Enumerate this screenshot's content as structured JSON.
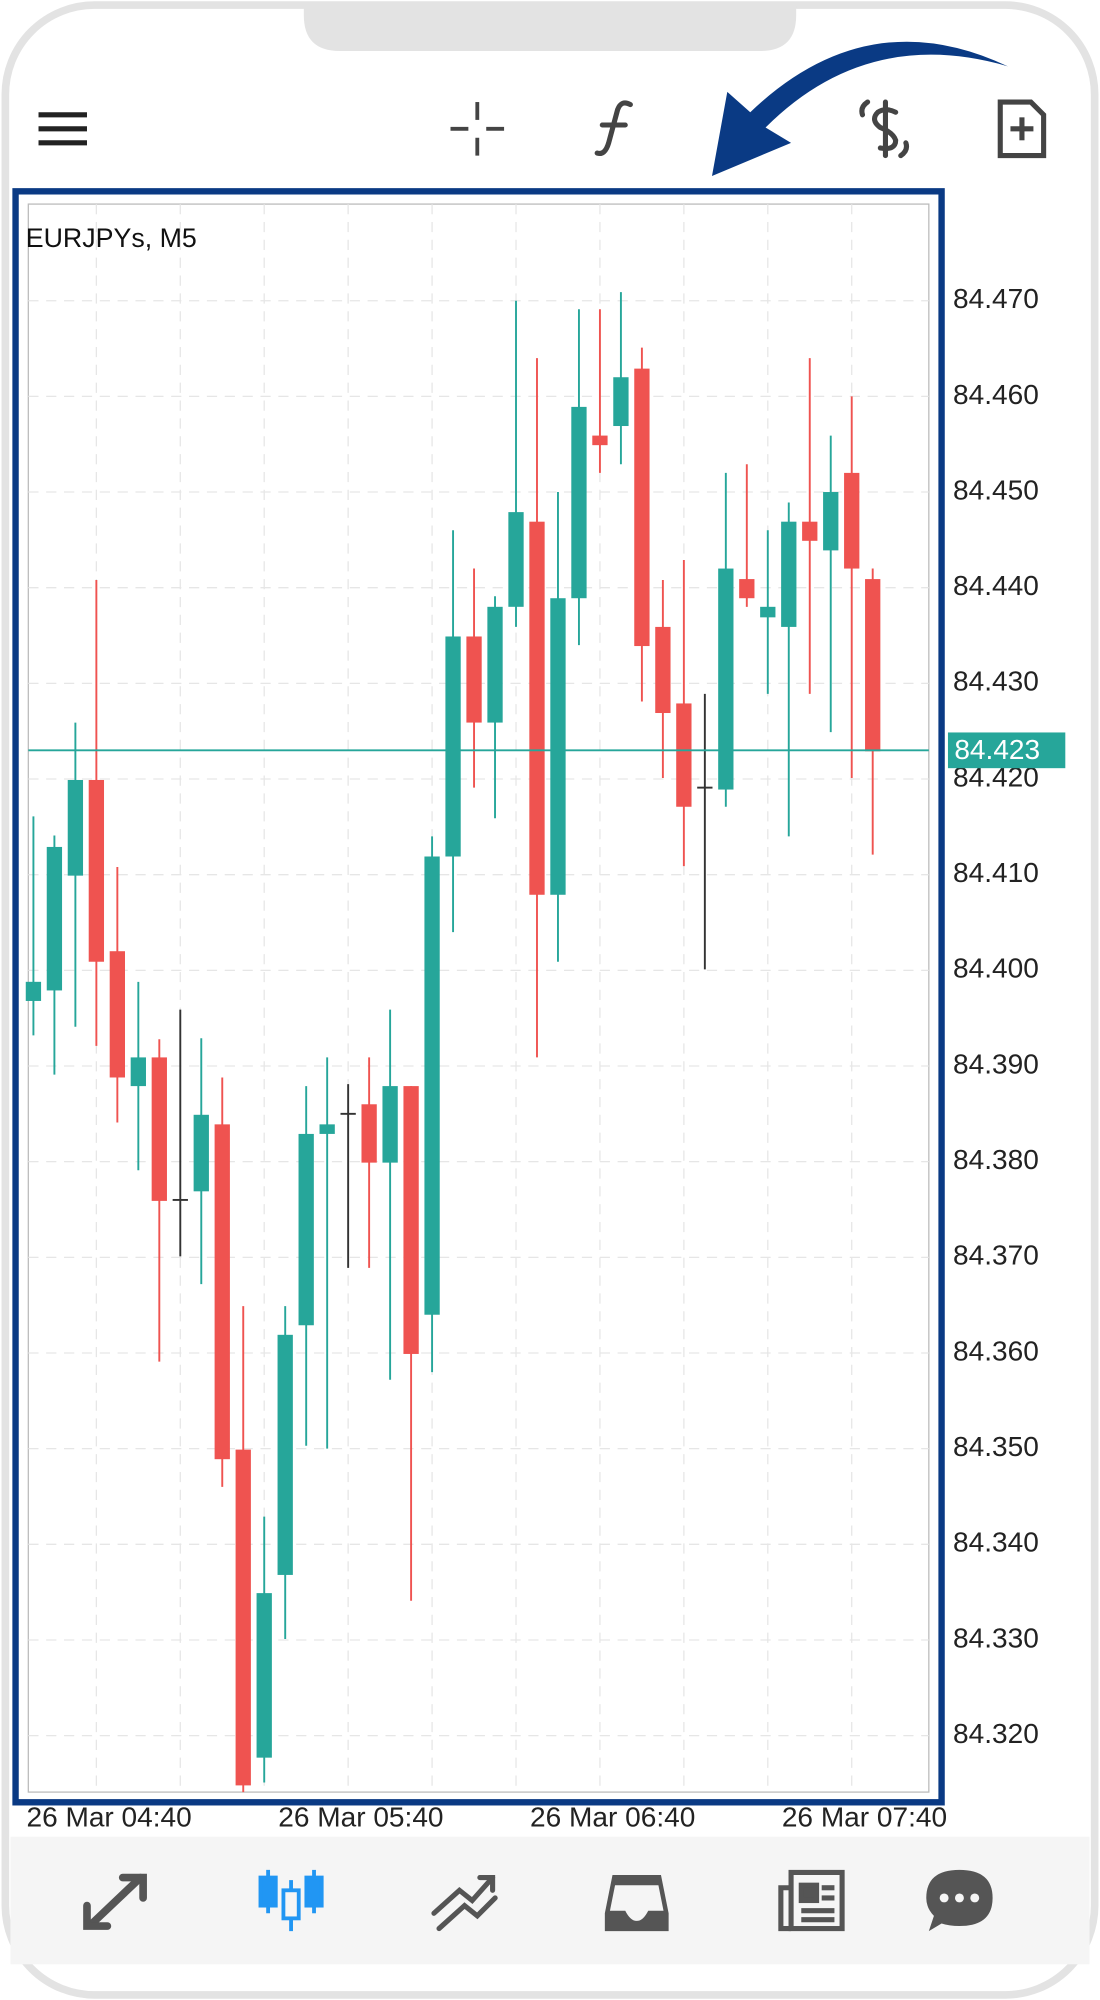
{
  "chart_data": {
    "type": "candlestick",
    "title": "EURJPYs, M5",
    "categories": [
      null,
      null,
      null,
      "26 Mar 04:40",
      null,
      null,
      null,
      null,
      null,
      null,
      null,
      null,
      null,
      null,
      null,
      "26 Mar 05:40",
      null,
      null,
      null,
      null,
      null,
      null,
      null,
      null,
      null,
      null,
      null,
      "26 Mar 06:40",
      null,
      null,
      null,
      null,
      null,
      null,
      null,
      null,
      null,
      null,
      null,
      "26 Mar 07:40",
      null
    ],
    "open": [
      84.3968,
      84.3979,
      84.4099,
      84.4199,
      84.402,
      84.3879,
      84.3909,
      84.376,
      84.3769,
      84.3839,
      84.3499,
      84.3177,
      84.3368,
      84.3629,
      84.3829,
      84.385,
      84.386,
      84.3799,
      84.3879,
      84.364,
      84.4119,
      84.4349,
      84.4259,
      84.438,
      84.4469,
      84.4079,
      84.4389,
      84.4559,
      84.4569,
      84.4629,
      84.4359,
      84.4279,
      84.4191,
      84.4189,
      84.4409,
      84.4369,
      84.4359,
      84.4469,
      84.4439,
      84.452,
      84.4409
    ],
    "high": [
      84.4161,
      84.4141,
      84.4259,
      84.4408,
      84.4108,
      84.3988,
      84.3928,
      84.3959,
      84.3929,
      84.3888,
      84.3649,
      84.3429,
      84.3649,
      84.3879,
      84.3909,
      84.3881,
      84.3909,
      84.3959,
      84.3879,
      84.414,
      84.446,
      84.442,
      84.4391,
      84.47,
      84.464,
      84.45,
      84.4691,
      84.4691,
      84.4709,
      84.4651,
      84.4408,
      84.4429,
      84.4289,
      84.452,
      84.4529,
      84.446,
      84.4489,
      84.464,
      84.4559,
      84.46,
      84.442
    ],
    "low": [
      84.3932,
      84.3891,
      84.3941,
      84.3921,
      84.3841,
      84.3791,
      84.3591,
      84.3701,
      84.3672,
      84.346,
      84.3141,
      84.3151,
      84.3301,
      84.3503,
      84.35,
      84.3689,
      84.3689,
      84.3572,
      84.3341,
      84.358,
      84.404,
      84.4191,
      84.4159,
      84.4359,
      84.3909,
      84.4009,
      84.434,
      84.452,
      84.4529,
      84.4281,
      84.4201,
      84.4109,
      84.4001,
      84.4171,
      84.438,
      84.4289,
      84.414,
      84.4289,
      84.4249,
      84.4201,
      84.4121
    ],
    "close": [
      84.3988,
      84.4129,
      84.4199,
      84.4009,
      84.3888,
      84.3909,
      84.3759,
      84.376,
      84.3849,
      84.3489,
      84.3148,
      84.3349,
      84.3619,
      84.3829,
      84.3839,
      84.385,
      84.3799,
      84.3879,
      84.3599,
      84.4119,
      84.4349,
      84.4259,
      84.438,
      84.4479,
      84.4079,
      84.4389,
      84.4589,
      84.4549,
      84.462,
      84.4339,
      84.4269,
      84.4171,
      84.4191,
      84.442,
      84.4389,
      84.438,
      84.4469,
      84.4449,
      84.45,
      84.442,
      84.4229
    ],
    "up_color": "#26a69a",
    "down_color": "#ef5350",
    "doji_color": "#333333",
    "last_price": 84.423,
    "last_price_color": "#26a69a",
    "ylim": [
      84.3141,
      84.4801
    ],
    "yticks": [
      {
        "value": 84.32,
        "label": "84.320"
      },
      {
        "value": 84.33,
        "label": "84.330"
      },
      {
        "value": 84.34,
        "label": "84.340"
      },
      {
        "value": 84.35,
        "label": "84.350"
      },
      {
        "value": 84.36,
        "label": "84.360"
      },
      {
        "value": 84.37,
        "label": "84.370"
      },
      {
        "value": 84.38,
        "label": "84.380"
      },
      {
        "value": 84.39,
        "label": "84.390"
      },
      {
        "value": 84.4,
        "label": "84.400"
      },
      {
        "value": 84.41,
        "label": "84.410"
      },
      {
        "value": 84.42,
        "label": "84.420"
      },
      {
        "value": 84.43,
        "label": "84.430"
      },
      {
        "value": 84.44,
        "label": "84.440"
      },
      {
        "value": 84.45,
        "label": "84.450"
      },
      {
        "value": 84.46,
        "label": "84.460"
      },
      {
        "value": 84.47,
        "label": "84.470"
      }
    ],
    "grid": true
  }
}
